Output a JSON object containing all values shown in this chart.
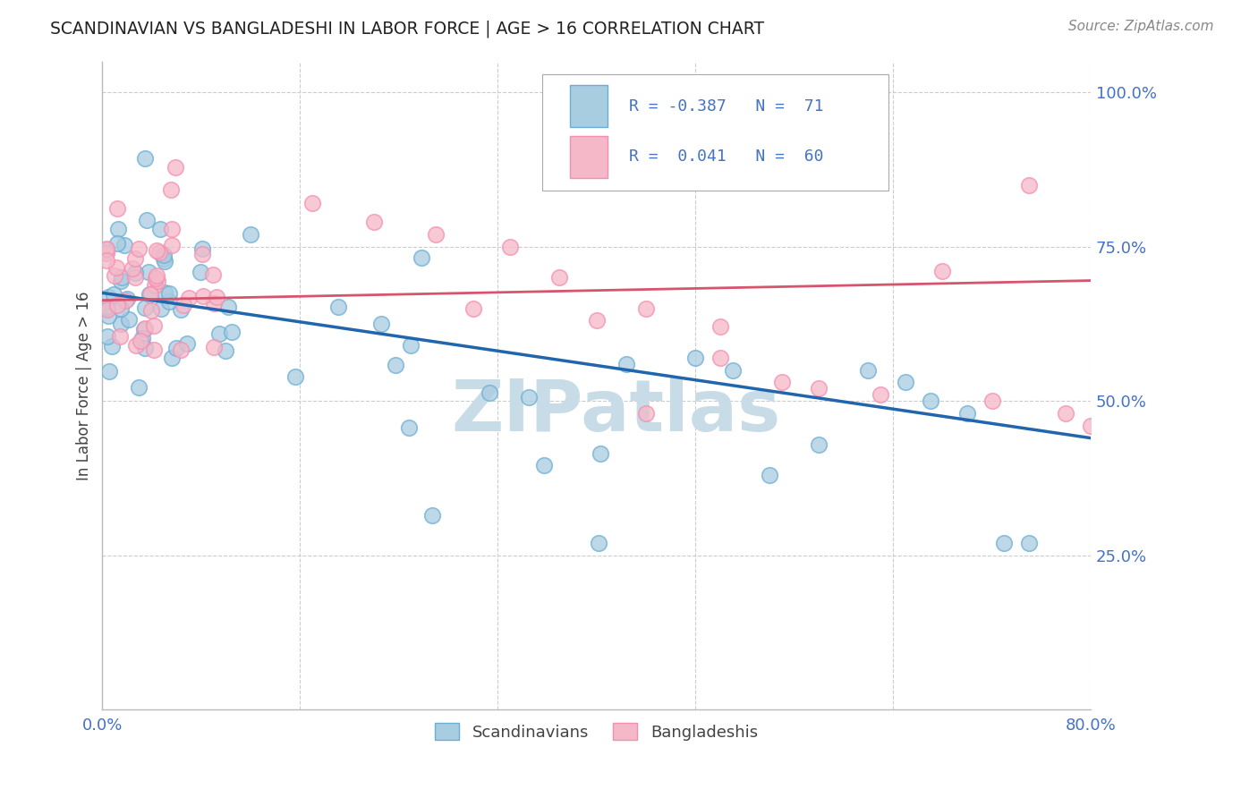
{
  "title": "SCANDINAVIAN VS BANGLADESHI IN LABOR FORCE | AGE > 16 CORRELATION CHART",
  "source": "Source: ZipAtlas.com",
  "ylabel": "In Labor Force | Age > 16",
  "legend_scandinavian": "Scandinavians",
  "legend_bangladeshi": "Bangladeshis",
  "r_scandinavian": -0.387,
  "n_scandinavian": 71,
  "r_bangladeshi": 0.041,
  "n_bangladeshi": 60,
  "blue_color": "#a8cce0",
  "pink_color": "#f4b8c8",
  "blue_edge_color": "#6aaed6",
  "pink_edge_color": "#f48fb1",
  "blue_line_color": "#2166ac",
  "pink_line_color": "#d6556d",
  "title_color": "#222222",
  "axis_label_color": "#444444",
  "tick_color": "#4472c4",
  "watermark_color": "#c8dce8",
  "background_color": "#ffffff",
  "grid_color": "#cccccc",
  "xlim": [
    0.0,
    0.8
  ],
  "ylim": [
    0.0,
    1.05
  ],
  "scand_line_x0": 0.0,
  "scand_line_y0": 0.675,
  "scand_line_x1": 0.8,
  "scand_line_y1": 0.44,
  "bang_line_x0": 0.0,
  "bang_line_y0": 0.663,
  "bang_line_x1": 0.8,
  "bang_line_y1": 0.695
}
